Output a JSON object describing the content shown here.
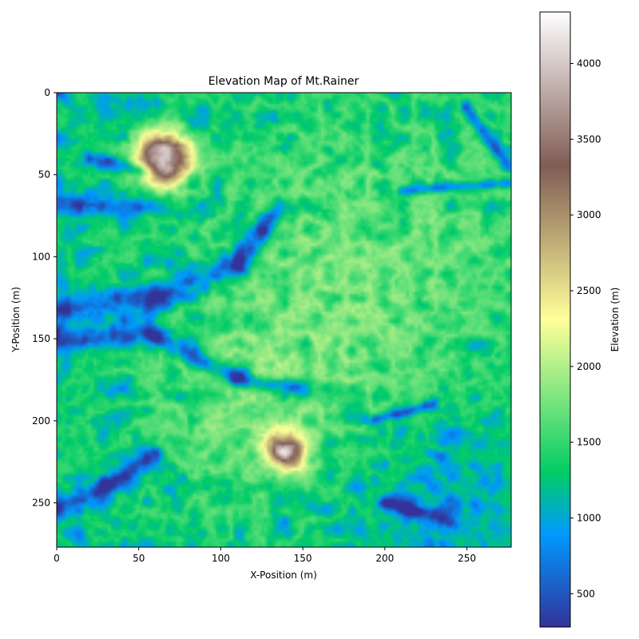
{
  "chart_data": {
    "type": "heatmap",
    "title": "Elevation Map of Mt.Rainer",
    "xlabel": "X-Position (m)",
    "ylabel": "Y-Position (m)",
    "xlim": [
      0,
      277
    ],
    "ylim": [
      277,
      0
    ],
    "xticks": [
      "0",
      "50",
      "100",
      "150",
      "200",
      "250"
    ],
    "yticks": [
      "0",
      "50",
      "100",
      "150",
      "200",
      "250"
    ],
    "grid": false,
    "colorbar": {
      "label": "Elevation (m)",
      "colormap": "terrain",
      "range": [
        280,
        4340
      ],
      "ticks": [
        "500",
        "1000",
        "1500",
        "2000",
        "2500",
        "3000",
        "3500",
        "4000"
      ]
    },
    "peaks": [
      {
        "x": 65,
        "y": 40,
        "elevation": 4300
      },
      {
        "x": 139,
        "y": 219,
        "elevation": 3700
      }
    ],
    "colors": {
      "low": "#333399",
      "mid_blue": "#0099ff",
      "mid_green": "#00cc66",
      "yellow": "#ffff99",
      "brown": "#805c54",
      "high": "#ffffff"
    }
  }
}
